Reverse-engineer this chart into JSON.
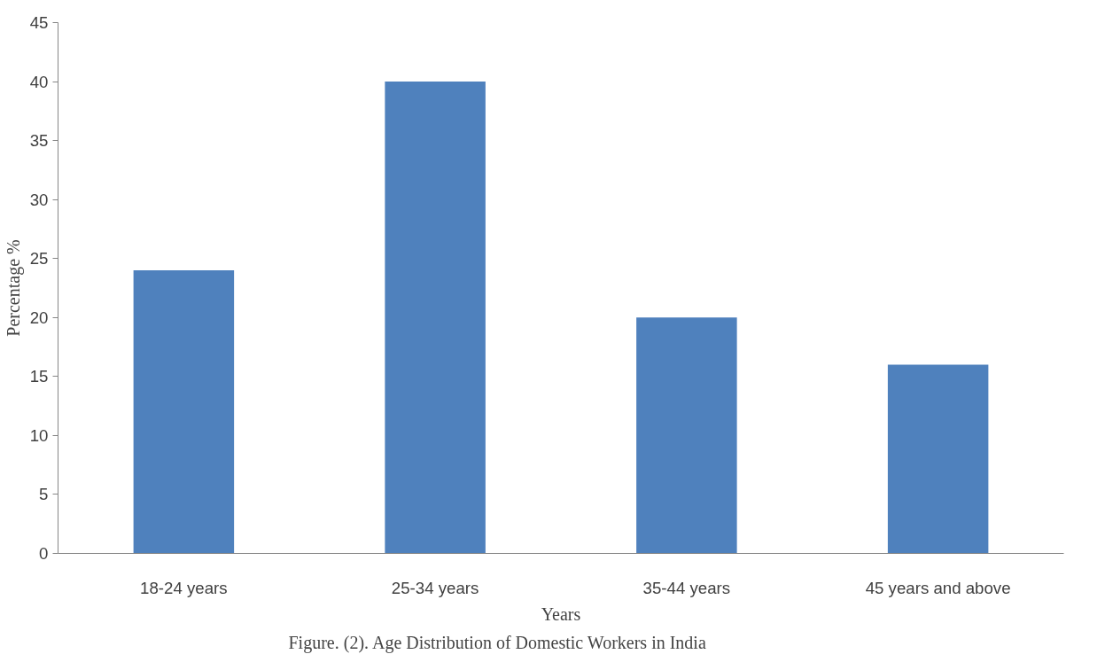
{
  "chart_data": {
    "type": "bar",
    "xlabel": "Years",
    "ylabel": "Percentage %",
    "categories": [
      "18-24 years",
      "25-34 years",
      "35-44 years",
      "45 years and above"
    ],
    "values": [
      24,
      40,
      20,
      16
    ],
    "color": "#4f81bd",
    "ylim": [
      0,
      45
    ],
    "yticks": [
      0,
      5,
      10,
      15,
      20,
      25,
      30,
      35,
      40,
      45
    ],
    "grid": false,
    "annotations": [
      "Figure. (2). Age Distribution of Domestic Workers in India"
    ]
  }
}
